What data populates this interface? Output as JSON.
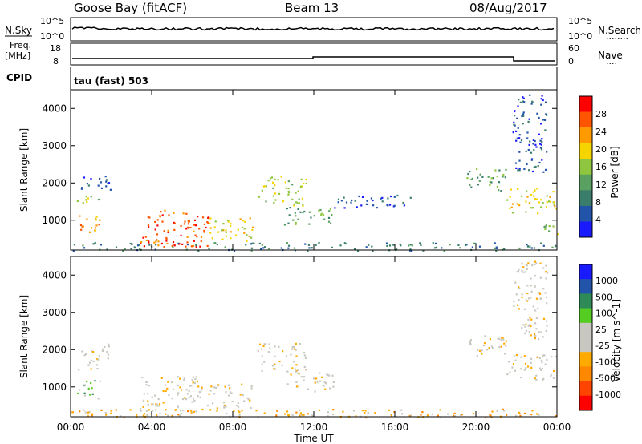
{
  "header": {
    "station": "Goose Bay (fitACF)",
    "beam": "Beam 13",
    "date": "08/Aug/2017"
  },
  "top_panels": {
    "nsky_label": "N.Sky",
    "nsearch_label": "N.Search",
    "nsearch_dots": "........",
    "nsky_ticks": [
      "10^5",
      "10^0"
    ],
    "freq_label": "Freq.",
    "freq_unit": "[MHz]",
    "freq_ticks": [
      "18",
      "8"
    ],
    "nave_label": "Nave",
    "nave_dots": "....",
    "nave_ticks": [
      "60",
      "0"
    ],
    "cpid_label": "CPID",
    "cpid_text": "tau (fast) 503"
  },
  "chart_data": [
    {
      "type": "heatmap",
      "name": "power",
      "ylabel": "Slant Range [km]",
      "ylim": [
        200,
        4500
      ],
      "yticks": [
        "4000",
        "3000",
        "2000",
        "1000"
      ],
      "xlim": [
        0,
        24
      ],
      "colorbar_label": "Power [dB]",
      "colorbar_ticks": [
        "28",
        "24",
        "20",
        "16",
        "12",
        "8",
        "4"
      ],
      "colors": [
        "#1a1aff",
        "#2255aa",
        "#3a7d6b",
        "#5aa060",
        "#8ec63f",
        "#f5d400",
        "#ff9a00",
        "#ff5500",
        "#ff0000"
      ],
      "patches": [
        {
          "t": [
            0.2,
            1.4
          ],
          "r": [
            650,
            1200
          ],
          "level": 6
        },
        {
          "t": [
            0.3,
            1.4
          ],
          "r": [
            1450,
            1750
          ],
          "level": 4
        },
        {
          "t": [
            0.5,
            2.0
          ],
          "r": [
            1750,
            2200
          ],
          "level": 1
        },
        {
          "t": [
            3.4,
            6.8
          ],
          "r": [
            300,
            1300
          ],
          "level": 7
        },
        {
          "t": [
            5.0,
            6.5
          ],
          "r": [
            300,
            500
          ],
          "level": 8
        },
        {
          "t": [
            6.8,
            9.0
          ],
          "r": [
            450,
            1100
          ],
          "level": 5
        },
        {
          "t": [
            9.2,
            11.6
          ],
          "r": [
            1400,
            2200
          ],
          "level": 4
        },
        {
          "t": [
            10.5,
            13.0
          ],
          "r": [
            900,
            1400
          ],
          "level": 3
        },
        {
          "t": [
            13.0,
            17.0
          ],
          "r": [
            1350,
            1700
          ],
          "level": 1
        },
        {
          "t": [
            19.5,
            21.5
          ],
          "r": [
            1800,
            2400
          ],
          "level": 3
        },
        {
          "t": [
            21.5,
            24.0
          ],
          "r": [
            1200,
            1900
          ],
          "level": 5
        },
        {
          "t": [
            21.8,
            23.5
          ],
          "r": [
            2300,
            4400
          ],
          "level": 1
        },
        {
          "t": [
            23.3,
            24.0
          ],
          "r": [
            600,
            900
          ],
          "level": 4
        },
        {
          "t": [
            0.0,
            24.0
          ],
          "r": [
            200,
            420
          ],
          "level": 2
        }
      ]
    },
    {
      "type": "heatmap",
      "name": "velocity",
      "ylabel": "Slant Range [km]",
      "ylim": [
        200,
        4500
      ],
      "yticks": [
        "4000",
        "3000",
        "2000",
        "1000"
      ],
      "xlim": [
        0,
        24
      ],
      "xticks": [
        "00:00",
        "04:00",
        "08:00",
        "12:00",
        "16:00",
        "20:00",
        "00:00"
      ],
      "xlabel": "Time UT",
      "colorbar_label": "Velocity [m s^-1]",
      "colorbar_ticks": [
        "1000",
        "500",
        "100",
        "25",
        "-25",
        "-100",
        "-500",
        "-1000"
      ],
      "colors": [
        "#ff0000",
        "#ff4400",
        "#ff8800",
        "#ffaa00",
        "#c8c8c0",
        "#c8c8c0",
        "#55cc22",
        "#2e8b57",
        "#2255aa",
        "#1a1aff"
      ],
      "patches": [
        {
          "t": [
            0.3,
            1.5
          ],
          "r": [
            700,
            1200
          ],
          "level": 6
        },
        {
          "t": [
            0.3,
            1.5
          ],
          "r": [
            1450,
            1750
          ],
          "level": 4
        },
        {
          "t": [
            0.5,
            2.0
          ],
          "r": [
            1750,
            2200
          ],
          "level": 4
        },
        {
          "t": [
            3.4,
            6.8
          ],
          "r": [
            300,
            1300
          ],
          "level": 4
        },
        {
          "t": [
            6.8,
            9.0
          ],
          "r": [
            450,
            1100
          ],
          "level": 4
        },
        {
          "t": [
            9.2,
            11.6
          ],
          "r": [
            1400,
            2200
          ],
          "level": 4
        },
        {
          "t": [
            10.5,
            13.0
          ],
          "r": [
            900,
            1400
          ],
          "level": 4
        },
        {
          "t": [
            19.5,
            21.5
          ],
          "r": [
            1800,
            2400
          ],
          "level": 4
        },
        {
          "t": [
            21.5,
            24.0
          ],
          "r": [
            1200,
            1900
          ],
          "level": 4
        },
        {
          "t": [
            21.8,
            23.5
          ],
          "r": [
            2300,
            4400
          ],
          "level": 4
        },
        {
          "t": [
            0.0,
            24.0
          ],
          "r": [
            200,
            420
          ],
          "level": 3
        }
      ]
    }
  ]
}
